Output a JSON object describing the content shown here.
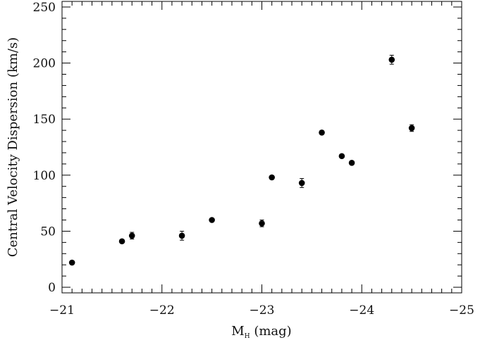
{
  "chart_data": {
    "type": "scatter",
    "title": "",
    "xlabel_main": "M",
    "xlabel_sub": "H",
    "xlabel_rest": " (mag)",
    "ylabel": "Central Velocity Dispersion (km/s)",
    "xlim": [
      -21,
      -25
    ],
    "ylim": [
      -5,
      255
    ],
    "x_ticks": [
      -21,
      -22,
      -23,
      -24,
      -25
    ],
    "x_tick_labels": [
      "−21",
      "−22",
      "−23",
      "−24",
      "−25"
    ],
    "y_ticks": [
      0,
      50,
      100,
      150,
      200,
      250
    ],
    "y_tick_labels": [
      "0",
      "50",
      "100",
      "150",
      "200",
      "250"
    ],
    "x_minor_step": 0.1,
    "y_minor_step": 10,
    "grid": false,
    "legend": "none",
    "marker_color": "#000000",
    "series": [
      {
        "points": [
          {
            "x": -21.1,
            "y": 22,
            "err": 1
          },
          {
            "x": -21.6,
            "y": 41,
            "err": 1.5
          },
          {
            "x": -21.7,
            "y": 46,
            "err": 3
          },
          {
            "x": -22.2,
            "y": 46,
            "err": 4
          },
          {
            "x": -22.5,
            "y": 60,
            "err": 1
          },
          {
            "x": -23.0,
            "y": 57,
            "err": 3
          },
          {
            "x": -23.1,
            "y": 98,
            "err": 1
          },
          {
            "x": -23.4,
            "y": 93,
            "err": 4
          },
          {
            "x": -23.6,
            "y": 138,
            "err": 1.5
          },
          {
            "x": -23.8,
            "y": 117,
            "err": 1.5
          },
          {
            "x": -23.9,
            "y": 111,
            "err": 1.5
          },
          {
            "x": -24.3,
            "y": 203,
            "err": 4
          },
          {
            "x": -24.5,
            "y": 142,
            "err": 3
          }
        ]
      }
    ]
  }
}
